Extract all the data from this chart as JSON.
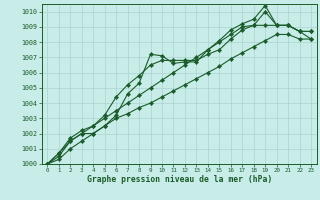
{
  "title": "Graphe pression niveau de la mer (hPa)",
  "bg_color": "#c8ece8",
  "grid_color": "#a8d4cc",
  "line_color": "#1a5c2a",
  "marker": "D",
  "markersize": 2.2,
  "linewidth": 0.8,
  "xlim": [
    -0.5,
    23.5
  ],
  "ylim": [
    1000,
    1010.5
  ],
  "xticks": [
    0,
    1,
    2,
    3,
    4,
    5,
    6,
    7,
    8,
    9,
    10,
    11,
    12,
    13,
    14,
    15,
    16,
    17,
    18,
    19,
    20,
    21,
    22,
    23
  ],
  "yticks": [
    1000,
    1001,
    1002,
    1003,
    1004,
    1005,
    1006,
    1007,
    1008,
    1009,
    1010
  ],
  "series": [
    [
      1000.0,
      1000.7,
      1001.5,
      1002.0,
      1002.0,
      1002.5,
      1003.2,
      1004.6,
      1005.3,
      1007.2,
      1007.1,
      1006.6,
      1006.7,
      1006.7,
      1007.5,
      1008.1,
      1008.8,
      1009.2,
      1009.5,
      1010.4,
      1009.1,
      1009.1,
      1008.7,
      1008.2
    ],
    [
      1000.0,
      1000.7,
      1001.7,
      1002.2,
      1002.5,
      1003.2,
      1004.4,
      1005.2,
      1005.8,
      1006.5,
      1006.8,
      1006.8,
      1006.8,
      1006.8,
      1007.2,
      1007.5,
      1008.2,
      1008.8,
      1009.1,
      1010.0,
      1009.1,
      1009.1,
      1008.7,
      1008.7
    ],
    [
      1000.0,
      1000.5,
      1001.5,
      1002.0,
      1002.5,
      1003.0,
      1003.5,
      1004.0,
      1004.5,
      1005.0,
      1005.5,
      1006.0,
      1006.5,
      1007.0,
      1007.5,
      1008.0,
      1008.5,
      1009.0,
      1009.1,
      1009.1,
      1009.1,
      1009.1,
      1008.7,
      1008.7
    ],
    [
      1000.0,
      1000.3,
      1001.0,
      1001.5,
      1002.0,
      1002.5,
      1003.0,
      1003.3,
      1003.7,
      1004.0,
      1004.4,
      1004.8,
      1005.2,
      1005.6,
      1006.0,
      1006.4,
      1006.9,
      1007.3,
      1007.7,
      1008.1,
      1008.5,
      1008.5,
      1008.2,
      1008.2
    ]
  ]
}
